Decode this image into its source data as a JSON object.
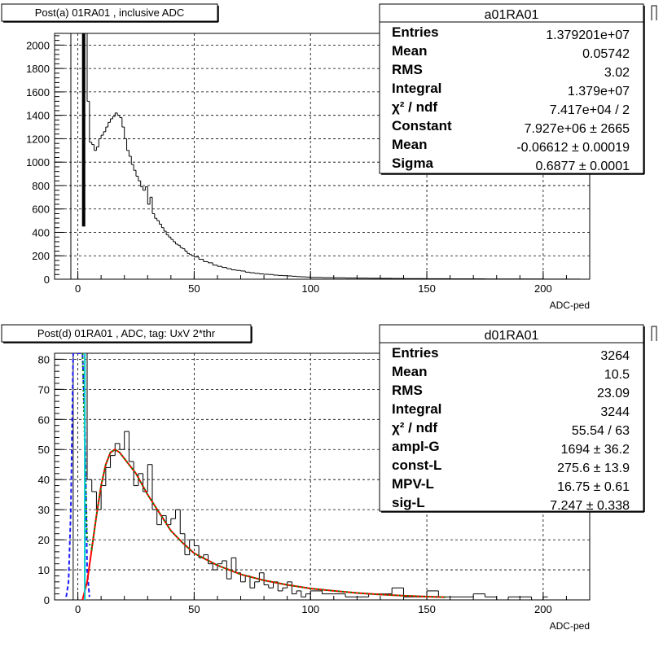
{
  "chart_data": [
    {
      "type": "bar",
      "title": "Post(a) 01RA01 , inclusive ADC",
      "xlabel": "ADC-ped",
      "ylabel": "",
      "xlim": [
        -10,
        220
      ],
      "ylim": [
        0,
        2100
      ],
      "x_ticks": [
        "0",
        "50",
        "100",
        "150",
        "200"
      ],
      "y_ticks": [
        "0",
        "200",
        "400",
        "600",
        "800",
        "1000",
        "1200",
        "1400",
        "1600",
        "1800",
        "2000"
      ],
      "grid": true,
      "stats_box": {
        "title": "a01RA01",
        "rows": [
          {
            "label": "Entries",
            "value": "1.379201e+07"
          },
          {
            "label": "Mean",
            "value": "0.05742"
          },
          {
            "label": "RMS",
            "value": "3.02"
          },
          {
            "label": "Integral",
            "value": "1.379e+07"
          },
          {
            "label": "χ² / ndf",
            "value": "7.417e+04 / 2"
          },
          {
            "label": "Constant",
            "value": "7.927e+06 ± 2665"
          },
          {
            "label": "Mean",
            "value": "-0.06612 ± 0.00019"
          },
          {
            "label": "Sigma",
            "value": "0.6877 ± 0.0001"
          }
        ]
      },
      "series": [
        {
          "kind": "histogram",
          "color": "#000000",
          "bin_width": 1,
          "x": [
            -5,
            -4,
            -3,
            -2,
            -1,
            0,
            1,
            2,
            3,
            4,
            5,
            6,
            7,
            8,
            9,
            10,
            11,
            12,
            13,
            14,
            15,
            16,
            17,
            18,
            19,
            20,
            21,
            22,
            23,
            24,
            25,
            26,
            27,
            28,
            29,
            30,
            31,
            32,
            33,
            34,
            35,
            36,
            37,
            38,
            39,
            40,
            41,
            42,
            43,
            44,
            45,
            46,
            47,
            48,
            49,
            50,
            52,
            54,
            56,
            58,
            60,
            62,
            64,
            66,
            68,
            70,
            72,
            74,
            76,
            78,
            80,
            82,
            84,
            86,
            88,
            90,
            92,
            94,
            96,
            98,
            100,
            105,
            110,
            115,
            120,
            125,
            130,
            135,
            140,
            145,
            150,
            155,
            160,
            165,
            170,
            175,
            180,
            185,
            190,
            195,
            200,
            205,
            210,
            215
          ],
          "values": [
            0,
            0,
            2100,
            2100,
            2100,
            2100,
            2100,
            2100,
            2100,
            1520,
            1170,
            1150,
            1100,
            1130,
            1200,
            1230,
            1260,
            1300,
            1340,
            1370,
            1390,
            1420,
            1400,
            1380,
            1300,
            1200,
            1100,
            1050,
            980,
            930,
            880,
            840,
            790,
            760,
            790,
            640,
            700,
            560,
            520,
            500,
            470,
            440,
            410,
            380,
            360,
            340,
            320,
            300,
            290,
            270,
            260,
            240,
            220,
            210,
            200,
            190,
            170,
            150,
            140,
            120,
            110,
            100,
            90,
            80,
            75,
            70,
            60,
            55,
            50,
            45,
            42,
            40,
            35,
            32,
            30,
            28,
            25,
            22,
            20,
            18,
            15,
            13,
            12,
            10,
            9,
            8,
            7,
            6,
            5,
            5,
            4,
            4,
            3,
            3,
            3,
            2,
            2,
            2,
            2,
            2,
            1,
            1,
            1,
            1
          ]
        },
        {
          "kind": "fit",
          "name": "gaus",
          "color": "#000000",
          "x": [
            2.5,
            2.5
          ],
          "y": [
            450,
            2100
          ]
        }
      ]
    },
    {
      "type": "bar",
      "title": "Post(d) 01RA01 , ADC, tag: UxV 2*thr",
      "xlabel": "ADC-ped",
      "ylabel": "",
      "xlim": [
        -10,
        220
      ],
      "ylim": [
        0,
        82
      ],
      "x_ticks": [
        "0",
        "50",
        "100",
        "150",
        "200"
      ],
      "y_ticks": [
        "0",
        "10",
        "20",
        "30",
        "40",
        "50",
        "60",
        "70",
        "80"
      ],
      "grid": true,
      "stats_box": {
        "title": "d01RA01",
        "rows": [
          {
            "label": "Entries",
            "value": "3264"
          },
          {
            "label": "Mean",
            "value": "10.5"
          },
          {
            "label": "RMS",
            "value": "23.09"
          },
          {
            "label": "Integral",
            "value": "3244"
          },
          {
            "label": "χ² / ndf",
            "value": "55.54 / 63"
          },
          {
            "label": "ampl-G",
            "value": "1694 ± 36.2"
          },
          {
            "label": "const-L",
            "value": "275.6 ± 13.9"
          },
          {
            "label": "MPV-L",
            "value": "16.75 ± 0.61"
          },
          {
            "label": "sig-L",
            "value": "7.247 ± 0.338"
          }
        ]
      },
      "series": [
        {
          "kind": "histogram",
          "color": "#000000",
          "bin_width": 2,
          "x": [
            -6,
            -4,
            -2,
            0,
            2,
            4,
            6,
            8,
            10,
            12,
            14,
            16,
            18,
            20,
            22,
            24,
            26,
            28,
            30,
            32,
            34,
            36,
            38,
            40,
            42,
            44,
            46,
            48,
            50,
            52,
            54,
            56,
            58,
            60,
            62,
            64,
            66,
            68,
            70,
            72,
            74,
            76,
            78,
            80,
            82,
            84,
            86,
            88,
            90,
            92,
            94,
            96,
            98,
            100,
            105,
            110,
            115,
            120,
            125,
            130,
            135,
            140,
            145,
            150,
            155,
            160,
            165,
            170,
            175,
            180,
            185,
            190,
            195,
            200
          ],
          "values": [
            0,
            0,
            82,
            82,
            82,
            40,
            36,
            30,
            38,
            44,
            48,
            52,
            50,
            56,
            46,
            38,
            42,
            36,
            45,
            30,
            25,
            28,
            25,
            27,
            30,
            22,
            15,
            20,
            18,
            14,
            15,
            12,
            10,
            12,
            13,
            7,
            14,
            9,
            6,
            8,
            4,
            6,
            9,
            5,
            4,
            6,
            3,
            4,
            6,
            2,
            3,
            1,
            2,
            3,
            2,
            2,
            1,
            1,
            2,
            2,
            4,
            1,
            1,
            3,
            1,
            1,
            1,
            2,
            1,
            0,
            1,
            1,
            0,
            1
          ]
        },
        {
          "kind": "fit",
          "name": "Gaussian",
          "color": "#1a1aff",
          "style": "dashed",
          "x": [
            -5,
            -4,
            -3,
            -2,
            -1,
            0,
            1,
            2,
            3,
            4,
            5
          ],
          "y": [
            1,
            6,
            30,
            82,
            82,
            82,
            82,
            82,
            60,
            10,
            1
          ]
        },
        {
          "kind": "fit",
          "name": "Landau",
          "color": "#ff0000",
          "style": "solid",
          "x": [
            2,
            4,
            6,
            8,
            10,
            12,
            14,
            16,
            18,
            20,
            25,
            30,
            35,
            40,
            45,
            50,
            60,
            70,
            80,
            90,
            100,
            110,
            120,
            130,
            140,
            150,
            158
          ],
          "y": [
            0,
            6,
            17,
            28,
            38,
            45,
            49,
            50,
            49,
            47,
            42,
            35,
            29,
            23,
            19,
            15.5,
            11.5,
            8.5,
            6.5,
            5,
            3.8,
            3,
            2.3,
            1.8,
            1.4,
            1.1,
            0.9
          ]
        },
        {
          "kind": "fit",
          "name": "Sum",
          "color": "#008800",
          "style": "dotted",
          "x": [
            2,
            4,
            6,
            8,
            10,
            12,
            14,
            16,
            18,
            20,
            25,
            30,
            35,
            40,
            45,
            50,
            60,
            70,
            80,
            90,
            100,
            110,
            120,
            130,
            140,
            150,
            158
          ],
          "y": [
            82,
            20,
            17,
            28,
            38,
            45,
            49,
            50,
            49,
            47,
            42,
            35,
            29,
            23,
            19,
            15.5,
            11.5,
            8.5,
            6.5,
            5,
            3.8,
            3,
            2.3,
            1.8,
            1.4,
            1.1,
            0.9
          ]
        },
        {
          "kind": "line",
          "name": "threshold",
          "color": "#00cccc",
          "x": [
            3,
            3
          ],
          "y": [
            0,
            82
          ]
        }
      ]
    }
  ]
}
